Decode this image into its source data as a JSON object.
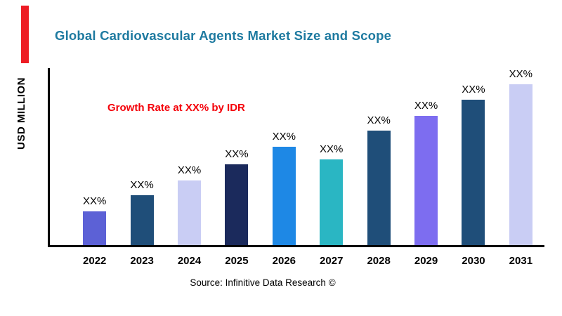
{
  "header": {
    "title": "Global Cardiovascular Agents Market Size and Scope"
  },
  "annotation": {
    "text": "Growth Rate at XX% by IDR"
  },
  "axis": {
    "y_label": "USD MILLION"
  },
  "footer": {
    "source": "Source: Infinitive Data Research ©"
  },
  "colors": {
    "accent_red": "#ed1c24",
    "title_teal": "#1e7aa0"
  },
  "chart_data": {
    "type": "bar",
    "title": "Global Cardiovascular Agents Market Size and Scope",
    "xlabel": "",
    "ylabel": "USD MILLION",
    "categories": [
      "2022",
      "2023",
      "2024",
      "2025",
      "2026",
      "2027",
      "2028",
      "2029",
      "2030",
      "2031"
    ],
    "values": [
      21,
      31,
      40,
      50,
      61,
      53,
      71,
      80,
      90,
      100
    ],
    "value_labels": [
      "XX%",
      "XX%",
      "XX%",
      "XX%",
      "XX%",
      "XX%",
      "XX%",
      "XX%",
      "XX%",
      "XX%"
    ],
    "bar_colors": [
      "#5c61d6",
      "#1f4e79",
      "#c9cdf4",
      "#1b2a5c",
      "#1e88e5",
      "#2ab6c3",
      "#1f4e79",
      "#7d6df0",
      "#1f4e79",
      "#c9cdf4"
    ],
    "ylim": [
      0,
      100
    ],
    "grid": false,
    "legend": false,
    "annotation": "Growth Rate at XX% by IDR"
  }
}
